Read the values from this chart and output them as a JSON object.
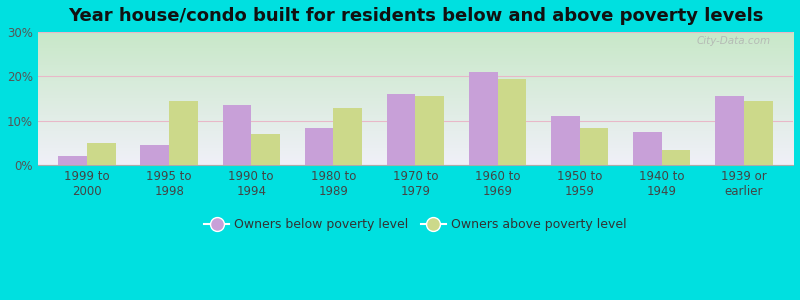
{
  "title": "Year house/condo built for residents below and above poverty levels",
  "categories": [
    "1999 to\n2000",
    "1995 to\n1998",
    "1990 to\n1994",
    "1980 to\n1989",
    "1970 to\n1979",
    "1960 to\n1969",
    "1950 to\n1959",
    "1940 to\n1949",
    "1939 or\nearlier"
  ],
  "below_poverty": [
    2.0,
    4.5,
    13.5,
    8.5,
    16.0,
    21.0,
    11.0,
    7.5,
    15.5
  ],
  "above_poverty": [
    5.0,
    14.5,
    7.0,
    13.0,
    15.5,
    19.5,
    8.5,
    3.5,
    14.5
  ],
  "below_color": "#c8a0d8",
  "above_color": "#ccd98a",
  "background_outer": "#00e0e0",
  "gradient_top": "#c8e8c8",
  "gradient_bottom": "#f0f0f8",
  "ylim": [
    0,
    30
  ],
  "yticks": [
    0,
    10,
    20,
    30
  ],
  "legend_below": "Owners below poverty level",
  "legend_above": "Owners above poverty level",
  "bar_width": 0.35,
  "title_fontsize": 13,
  "tick_fontsize": 8.5,
  "legend_fontsize": 9,
  "watermark": "City-Data.com"
}
